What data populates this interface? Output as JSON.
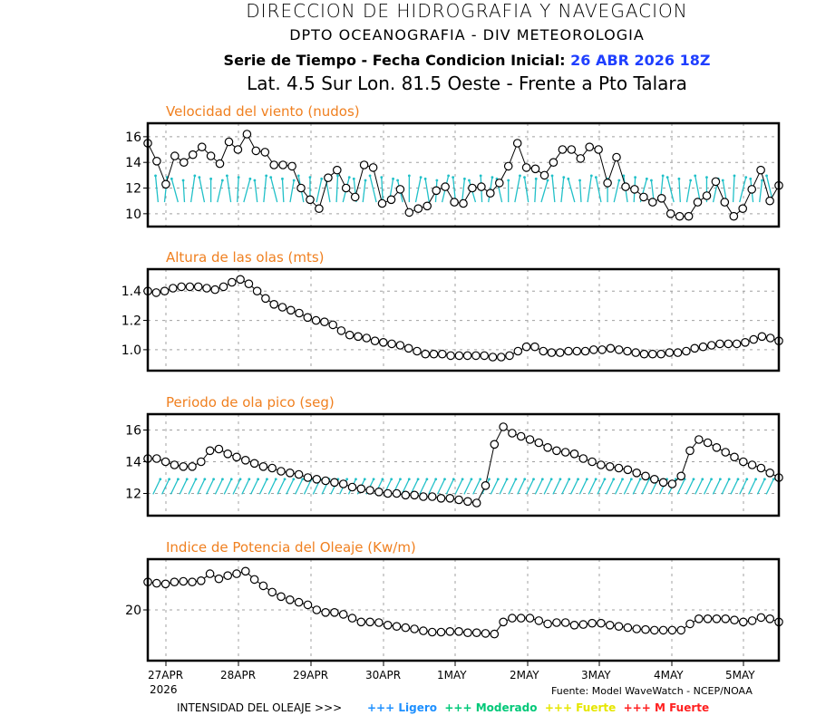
{
  "header": {
    "title": "DIRECCION DE HIDROGRAFIA Y NAVEGACION",
    "subtitle": "DPTO OCEANOGRAFIA - DIV METEOROLOGIA",
    "series_label": "Serie de Tiempo - Fecha Condicion Inicial:",
    "init_date": "26 ABR 2026 18Z",
    "location": "Lat. 4.5 Sur  Lon. 81.5 Oeste - Frente a Pto Talara"
  },
  "footer": {
    "source": "Fuente: Model WaveWatch - NCEP/NOAA",
    "intensity_label": "INTENSIDAD DEL OLEAJE >>>",
    "legend": [
      {
        "label": "+++ Ligero",
        "color": "#1e90ff"
      },
      {
        "label": "+++ Moderado",
        "color": "#00c878"
      },
      {
        "label": "+++ Fuerte",
        "color": "#e6e600"
      },
      {
        "label": "+++ M Fuerte",
        "color": "#ff2020"
      }
    ]
  },
  "colors": {
    "panel_title": "#f08020",
    "line": "#000000",
    "arrows": "#20c0c8",
    "grid": "#a0a0a0"
  },
  "chart_data": [
    {
      "type": "line",
      "title": "Velocidad del viento (nudos)",
      "x_start": "26 ABR 2026 18Z",
      "x_step_hours": 3,
      "x_tick_labels": [
        "27APR",
        "28APR",
        "29APR",
        "30APR",
        "1MAY",
        "2MAY",
        "3MAY",
        "4MAY",
        "5MAY"
      ],
      "x_year_label": "2026",
      "ylim": [
        9.0,
        17.05
      ],
      "yticks": [
        10,
        12,
        14,
        16
      ],
      "ytick_labels": [
        "10",
        "12",
        "14",
        "16"
      ],
      "grid": true,
      "arrows": "wind-direction",
      "values": [
        15.5,
        14.1,
        12.3,
        14.5,
        14.0,
        14.6,
        15.2,
        14.5,
        13.9,
        15.6,
        15.0,
        16.2,
        14.9,
        14.8,
        13.8,
        13.8,
        13.7,
        12.0,
        11.1,
        10.4,
        12.8,
        13.4,
        12.0,
        11.3,
        13.8,
        13.6,
        10.8,
        11.1,
        11.9,
        10.1,
        10.4,
        10.6,
        11.8,
        12.1,
        10.9,
        10.8,
        12.0,
        12.1,
        11.6,
        12.4,
        13.7,
        15.5,
        13.6,
        13.5,
        13.0,
        14.0,
        15.0,
        15.0,
        14.3,
        15.2,
        15.0,
        12.4,
        14.4,
        12.1,
        11.9,
        11.3,
        10.9,
        11.2,
        10.0,
        9.8,
        9.8,
        10.9,
        11.4,
        12.5,
        10.9,
        9.8,
        10.4,
        11.9,
        13.4,
        11.0,
        12.2
      ]
    },
    {
      "type": "line",
      "title": "Altura de las olas (mts)",
      "ylim": [
        0.857,
        1.55
      ],
      "yticks": [
        1.0,
        1.2,
        1.4
      ],
      "ytick_labels": [
        "1.0",
        "1.2",
        "1.4"
      ],
      "grid": true,
      "values": [
        1.4,
        1.39,
        1.4,
        1.42,
        1.43,
        1.43,
        1.43,
        1.42,
        1.41,
        1.43,
        1.46,
        1.48,
        1.45,
        1.4,
        1.35,
        1.31,
        1.29,
        1.27,
        1.25,
        1.22,
        1.2,
        1.19,
        1.17,
        1.13,
        1.1,
        1.09,
        1.08,
        1.06,
        1.05,
        1.04,
        1.03,
        1.01,
        0.99,
        0.97,
        0.97,
        0.97,
        0.96,
        0.96,
        0.96,
        0.96,
        0.96,
        0.95,
        0.95,
        0.96,
        0.99,
        1.02,
        1.02,
        0.99,
        0.98,
        0.98,
        0.99,
        0.99,
        0.99,
        1.0,
        1.0,
        1.01,
        1.0,
        0.99,
        0.98,
        0.97,
        0.97,
        0.97,
        0.98,
        0.98,
        0.99,
        1.01,
        1.02,
        1.03,
        1.04,
        1.04,
        1.04,
        1.05,
        1.07,
        1.09,
        1.08,
        1.06
      ]
    },
    {
      "type": "line",
      "title": "Periodo de ola pico (seg)",
      "ylim": [
        10.6,
        17.0
      ],
      "yticks": [
        12,
        14,
        16
      ],
      "ytick_labels": [
        "12",
        "14",
        "16"
      ],
      "grid": true,
      "arrows": "wave-direction",
      "values": [
        14.2,
        14.2,
        14.0,
        13.8,
        13.7,
        13.7,
        14.0,
        14.7,
        14.8,
        14.5,
        14.3,
        14.1,
        13.9,
        13.7,
        13.6,
        13.4,
        13.3,
        13.2,
        13.0,
        12.9,
        12.8,
        12.7,
        12.6,
        12.4,
        12.3,
        12.2,
        12.1,
        12.0,
        12.0,
        11.9,
        11.9,
        11.8,
        11.8,
        11.7,
        11.7,
        11.6,
        11.5,
        11.4,
        12.5,
        15.1,
        16.2,
        15.8,
        15.6,
        15.4,
        15.2,
        14.9,
        14.7,
        14.6,
        14.5,
        14.2,
        14.0,
        13.8,
        13.7,
        13.6,
        13.5,
        13.3,
        13.1,
        12.9,
        12.7,
        12.6,
        13.1,
        14.7,
        15.4,
        15.2,
        14.9,
        14.6,
        14.3,
        14.0,
        13.8,
        13.6,
        13.3,
        13.0
      ]
    },
    {
      "type": "line",
      "title": "Indice de Potencia del Oleaje (Kw/m)",
      "ylim": [
        12.0,
        28.0
      ],
      "yticks": [
        20
      ],
      "ytick_labels": [
        "20"
      ],
      "grid": true,
      "values": [
        24.4,
        24.2,
        24.1,
        24.4,
        24.5,
        24.4,
        24.6,
        25.7,
        24.9,
        25.4,
        25.7,
        26.1,
        24.8,
        23.8,
        22.8,
        22.1,
        21.6,
        21.2,
        20.8,
        20.0,
        19.6,
        19.6,
        19.3,
        18.7,
        18.1,
        18.1,
        18.0,
        17.6,
        17.4,
        17.2,
        17.0,
        16.7,
        16.5,
        16.5,
        16.6,
        16.6,
        16.4,
        16.4,
        16.3,
        16.2,
        18.1,
        18.7,
        18.7,
        18.7,
        18.3,
        17.8,
        18.0,
        18.0,
        17.6,
        17.7,
        17.9,
        17.9,
        17.6,
        17.4,
        17.2,
        17.0,
        16.9,
        16.8,
        16.8,
        16.8,
        16.8,
        17.8,
        18.6,
        18.6,
        18.6,
        18.6,
        18.4,
        18.1,
        18.3,
        18.8,
        18.6,
        18.1
      ]
    }
  ]
}
